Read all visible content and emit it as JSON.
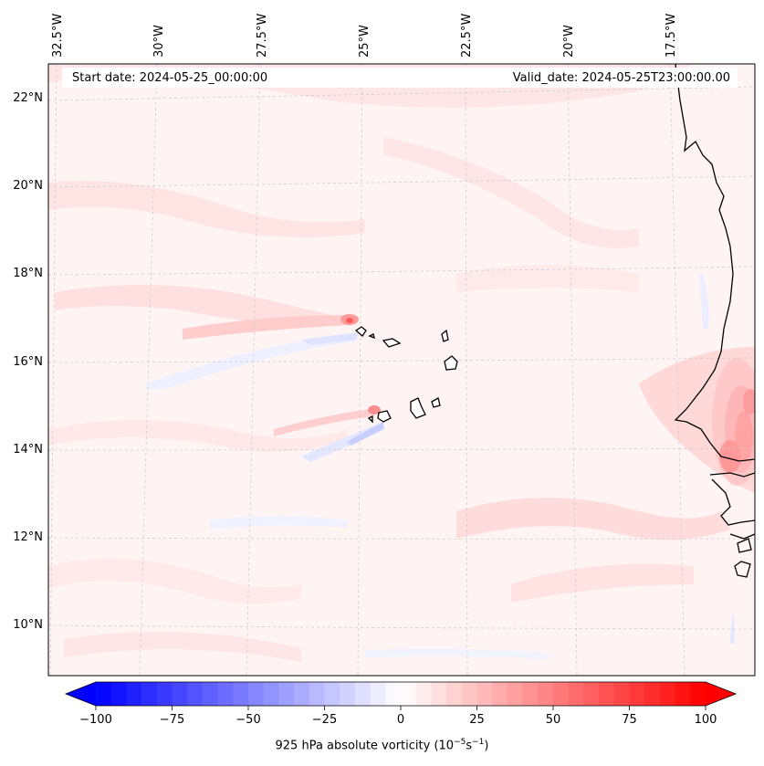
{
  "header": {
    "start_label": "Start date: 2024-05-25_00:00:00",
    "valid_label": "Valid_date: 2024-05-25T23:00:00.00"
  },
  "lon_labels": [
    "32.5°W",
    "30°W",
    "27.5°W",
    "25°W",
    "22.5°W",
    "20°W",
    "17.5°W"
  ],
  "lat_labels": [
    "22°N",
    "20°N",
    "18°N",
    "16°N",
    "14°N",
    "12°N",
    "10°N"
  ],
  "colorbar": {
    "label_prefix": "925 hPa absolute vorticity (10",
    "label_exp1": "−5",
    "label_mid": "s",
    "label_exp2": "−1",
    "label_suffix": ")",
    "ticks": [
      "−100",
      "−75",
      "−50",
      "−25",
      "0",
      "25",
      "50",
      "75",
      "100"
    ],
    "min": -100,
    "max": 100,
    "levels": 40,
    "cmap": "bwr",
    "low_color": "#0000ff",
    "mid_color": "#ffffff",
    "high_color": "#ff0000"
  }
}
